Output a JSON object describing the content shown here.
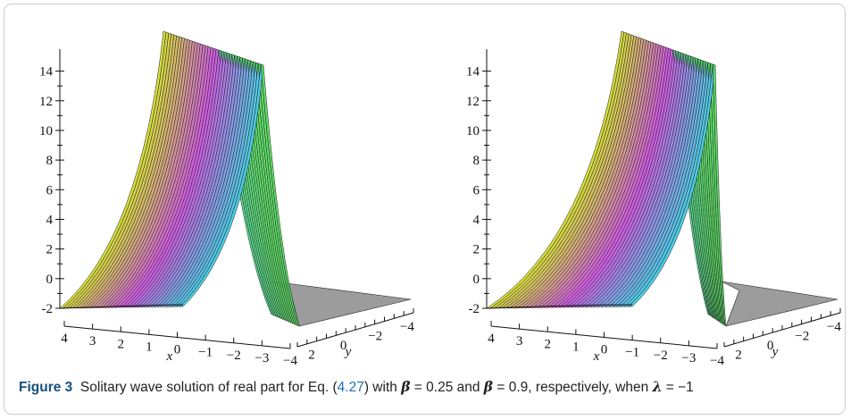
{
  "figure": {
    "label": "Figure 3",
    "caption_text": [
      "Solitary wave solution of real part for Eq. (",
      "4.27",
      ") with ",
      "β",
      " = 0.25 and ",
      "β",
      " = 0.9, respectively, when ",
      "λ",
      " = −1"
    ]
  },
  "chart_data": [
    {
      "type": "surface3d",
      "parameter": {
        "beta": 0.25,
        "lambda": -1
      },
      "z_ticks": [
        "14",
        "12",
        "10",
        "8",
        "6",
        "4",
        "2",
        "0",
        "-2"
      ],
      "x_ticks": [
        "4",
        "3",
        "2",
        "1",
        "0",
        "−1",
        "−2",
        "−3",
        "−4"
      ],
      "y_ticks": [
        "2",
        "0",
        "−2",
        "−4"
      ],
      "xlabel": "x",
      "ylabel": "y",
      "zlim": [
        -2,
        15
      ],
      "xlim": [
        -4,
        4
      ],
      "ylim": [
        -4,
        4
      ],
      "peak_value": 15,
      "baseline_value": -2
    },
    {
      "type": "surface3d",
      "parameter": {
        "beta": 0.9,
        "lambda": -1
      },
      "z_ticks": [
        "14",
        "12",
        "10",
        "8",
        "6",
        "4",
        "2",
        "0",
        "-2"
      ],
      "x_ticks": [
        "4",
        "3",
        "2",
        "1",
        "0",
        "−1",
        "−2",
        "−3",
        "−4"
      ],
      "y_ticks": [
        "2",
        "0",
        "−2",
        "−4"
      ],
      "xlabel": "x",
      "ylabel": "y",
      "zlim": [
        -2,
        15
      ],
      "xlim": [
        -4,
        4
      ],
      "ylim": [
        -4,
        4
      ],
      "peak_value": 15,
      "baseline_value": -2
    }
  ]
}
